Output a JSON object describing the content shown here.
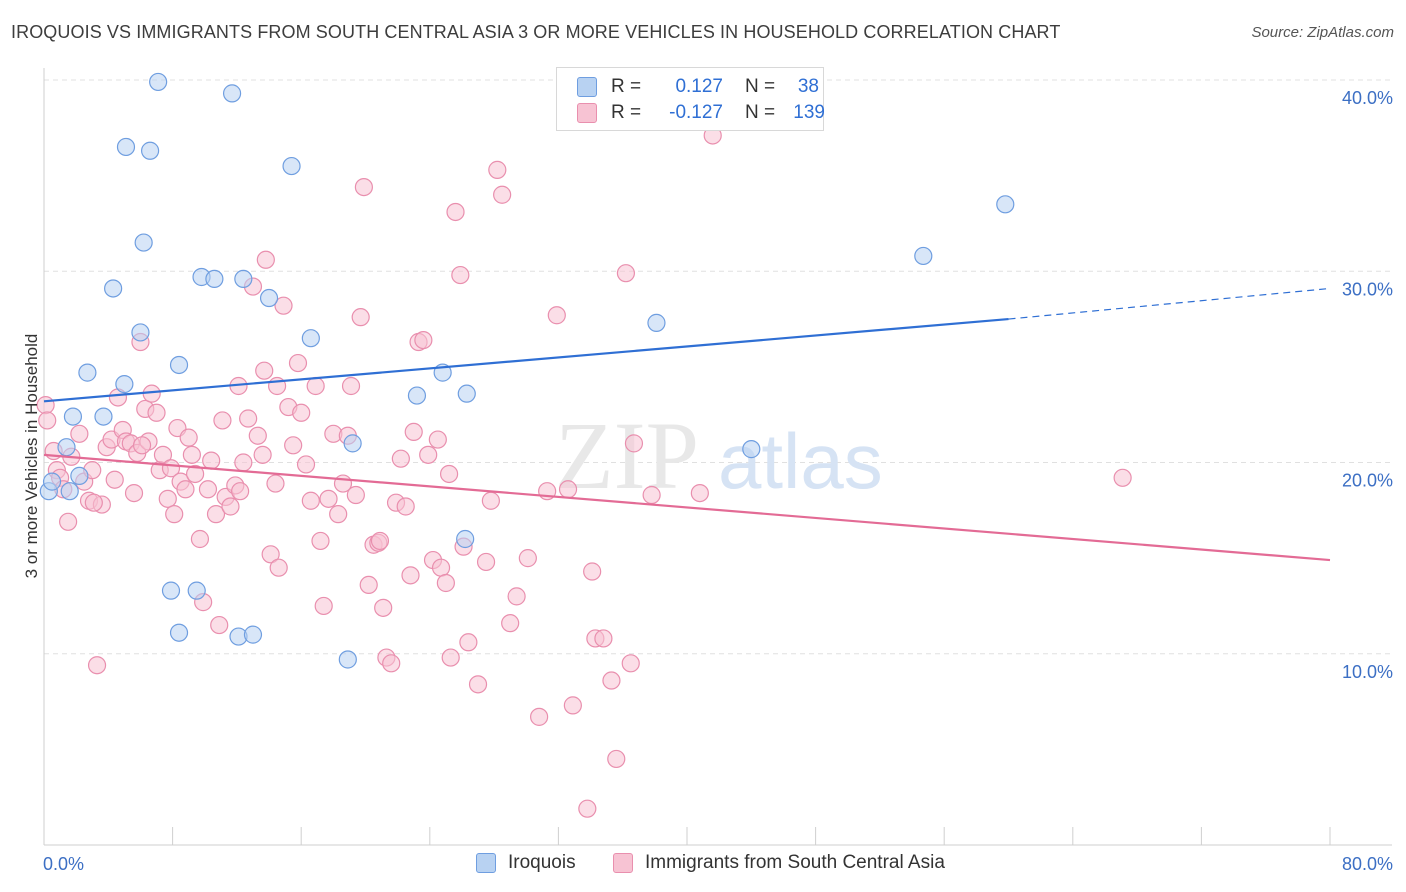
{
  "title": "IROQUOIS VS IMMIGRANTS FROM SOUTH CENTRAL ASIA 3 OR MORE VEHICLES IN HOUSEHOLD CORRELATION CHART",
  "source": "Source: ZipAtlas.com",
  "watermark": {
    "zip": "ZIP",
    "atlas": "atlas"
  },
  "legend": {
    "rows": [
      {
        "r_label": "R =",
        "r_value": "0.127",
        "n_label": "N =",
        "n_value": "38"
      },
      {
        "r_label": "R =",
        "r_value": "-0.127",
        "n_label": "N =",
        "n_value": "139"
      }
    ]
  },
  "colors": {
    "iroquois_fill": "#b8d2f2",
    "iroquois_stroke": "#6f9ee0",
    "iroquois_line": "#2f6fd4",
    "immigrants_fill": "#f7c3d3",
    "immigrants_stroke": "#e98fae",
    "immigrants_line": "#e36b95",
    "tick_text": "#3c6fc4",
    "grid": "#e0e0e0"
  },
  "chart_data": {
    "type": "scatter",
    "title": "IROQUOIS VS IMMIGRANTS FROM SOUTH CENTRAL ASIA 3 OR MORE VEHICLES IN HOUSEHOLD CORRELATION CHART",
    "xlabel": "",
    "ylabel": "3 or more Vehicles in Household",
    "xlim": [
      0,
      80
    ],
    "ylim": [
      0,
      40
    ],
    "x_tick_labels": [
      "0.0%",
      "80.0%"
    ],
    "y_ticks": [
      10,
      20,
      30,
      40
    ],
    "y_tick_labels": [
      "10.0%",
      "20.0%",
      "30.0%",
      "40.0%"
    ],
    "grid": true,
    "legend_position": "top-center",
    "series": [
      {
        "name": "Iroquois",
        "points": [
          [
            0.3,
            18.5
          ],
          [
            0.5,
            19.0
          ],
          [
            1.4,
            20.8
          ],
          [
            1.8,
            22.4
          ],
          [
            1.6,
            18.5
          ],
          [
            2.2,
            19.3
          ],
          [
            2.7,
            24.7
          ],
          [
            3.7,
            22.4
          ],
          [
            4.3,
            29.1
          ],
          [
            5.0,
            24.1
          ],
          [
            5.1,
            36.5
          ],
          [
            6.0,
            26.8
          ],
          [
            6.2,
            31.5
          ],
          [
            6.6,
            36.3
          ],
          [
            7.1,
            39.9
          ],
          [
            7.9,
            13.3
          ],
          [
            8.4,
            11.1
          ],
          [
            8.4,
            25.1
          ],
          [
            9.5,
            13.3
          ],
          [
            9.8,
            29.7
          ],
          [
            10.6,
            29.6
          ],
          [
            11.7,
            39.3
          ],
          [
            12.1,
            10.9
          ],
          [
            12.4,
            29.6
          ],
          [
            13.0,
            11.0
          ],
          [
            14.0,
            28.6
          ],
          [
            15.4,
            35.5
          ],
          [
            16.6,
            26.5
          ],
          [
            18.9,
            9.7
          ],
          [
            19.2,
            21.0
          ],
          [
            23.2,
            23.5
          ],
          [
            24.8,
            24.7
          ],
          [
            26.2,
            16.0
          ],
          [
            26.3,
            23.6
          ],
          [
            38.1,
            27.3
          ],
          [
            44.0,
            20.7
          ],
          [
            54.7,
            30.8
          ],
          [
            59.8,
            33.5
          ]
        ]
      },
      {
        "name": "Immigrants from South Central Asia",
        "points": [
          [
            0.1,
            23.0
          ],
          [
            0.2,
            22.2
          ],
          [
            0.6,
            20.6
          ],
          [
            0.8,
            19.6
          ],
          [
            1.0,
            19.2
          ],
          [
            1.2,
            18.6
          ],
          [
            1.5,
            16.9
          ],
          [
            1.7,
            20.3
          ],
          [
            2.2,
            21.5
          ],
          [
            2.5,
            19.0
          ],
          [
            2.8,
            18.0
          ],
          [
            3.0,
            19.6
          ],
          [
            3.3,
            9.4
          ],
          [
            3.6,
            17.8
          ],
          [
            3.9,
            20.8
          ],
          [
            4.2,
            21.2
          ],
          [
            4.4,
            19.1
          ],
          [
            4.6,
            23.4
          ],
          [
            4.9,
            21.7
          ],
          [
            5.1,
            21.1
          ],
          [
            5.4,
            21.0
          ],
          [
            5.6,
            18.4
          ],
          [
            5.8,
            20.5
          ],
          [
            6.0,
            26.3
          ],
          [
            6.3,
            22.8
          ],
          [
            6.5,
            21.1
          ],
          [
            6.7,
            23.6
          ],
          [
            7.0,
            22.6
          ],
          [
            7.2,
            19.6
          ],
          [
            7.4,
            20.4
          ],
          [
            7.7,
            18.1
          ],
          [
            7.9,
            19.7
          ],
          [
            8.1,
            17.3
          ],
          [
            8.3,
            21.8
          ],
          [
            8.5,
            19.0
          ],
          [
            8.8,
            18.6
          ],
          [
            9.2,
            20.4
          ],
          [
            9.4,
            19.4
          ],
          [
            9.7,
            16.0
          ],
          [
            9.9,
            12.7
          ],
          [
            10.2,
            18.6
          ],
          [
            10.4,
            20.1
          ],
          [
            10.7,
            17.3
          ],
          [
            10.9,
            11.5
          ],
          [
            11.1,
            22.2
          ],
          [
            11.3,
            18.2
          ],
          [
            11.6,
            17.7
          ],
          [
            11.9,
            18.8
          ],
          [
            12.1,
            24.0
          ],
          [
            12.4,
            20.0
          ],
          [
            12.7,
            22.3
          ],
          [
            13.0,
            29.2
          ],
          [
            13.3,
            21.4
          ],
          [
            13.6,
            20.4
          ],
          [
            13.8,
            30.6
          ],
          [
            14.1,
            15.2
          ],
          [
            14.4,
            18.9
          ],
          [
            14.6,
            14.5
          ],
          [
            14.9,
            28.2
          ],
          [
            15.2,
            22.9
          ],
          [
            15.5,
            20.9
          ],
          [
            15.8,
            25.2
          ],
          [
            16.0,
            22.6
          ],
          [
            16.3,
            19.9
          ],
          [
            16.6,
            18.0
          ],
          [
            16.9,
            24.0
          ],
          [
            17.2,
            15.9
          ],
          [
            17.4,
            12.5
          ],
          [
            17.7,
            18.1
          ],
          [
            18.0,
            21.5
          ],
          [
            18.3,
            17.3
          ],
          [
            18.6,
            18.9
          ],
          [
            18.9,
            21.4
          ],
          [
            19.1,
            24.0
          ],
          [
            19.4,
            18.3
          ],
          [
            19.7,
            27.6
          ],
          [
            19.9,
            34.4
          ],
          [
            20.2,
            13.6
          ],
          [
            20.5,
            15.7
          ],
          [
            20.8,
            15.8
          ],
          [
            21.1,
            12.4
          ],
          [
            21.3,
            9.8
          ],
          [
            21.6,
            9.5
          ],
          [
            21.9,
            17.9
          ],
          [
            22.2,
            20.2
          ],
          [
            22.5,
            17.7
          ],
          [
            22.8,
            14.1
          ],
          [
            23.0,
            21.6
          ],
          [
            23.3,
            26.3
          ],
          [
            23.6,
            26.4
          ],
          [
            23.9,
            20.4
          ],
          [
            24.2,
            14.9
          ],
          [
            24.5,
            21.2
          ],
          [
            24.7,
            14.5
          ],
          [
            25.0,
            13.7
          ],
          [
            25.3,
            9.8
          ],
          [
            25.6,
            33.1
          ],
          [
            25.9,
            29.8
          ],
          [
            26.1,
            15.6
          ],
          [
            26.4,
            10.6
          ],
          [
            27.0,
            8.4
          ],
          [
            27.5,
            14.8
          ],
          [
            28.2,
            35.3
          ],
          [
            28.5,
            34.0
          ],
          [
            29.0,
            11.6
          ],
          [
            29.4,
            13.0
          ],
          [
            30.1,
            15.0
          ],
          [
            30.8,
            6.7
          ],
          [
            31.3,
            18.5
          ],
          [
            31.9,
            27.7
          ],
          [
            32.6,
            18.6
          ],
          [
            32.9,
            7.3
          ],
          [
            33.8,
            1.9
          ],
          [
            34.1,
            14.3
          ],
          [
            34.3,
            10.8
          ],
          [
            34.8,
            10.8
          ],
          [
            35.3,
            8.6
          ],
          [
            35.6,
            4.5
          ],
          [
            36.2,
            29.9
          ],
          [
            36.5,
            9.5
          ],
          [
            36.7,
            21.0
          ],
          [
            37.8,
            18.3
          ],
          [
            40.8,
            18.4
          ],
          [
            41.6,
            37.1
          ],
          [
            67.1,
            19.2
          ],
          [
            13.7,
            24.8
          ],
          [
            9.0,
            21.3
          ],
          [
            6.1,
            20.9
          ],
          [
            3.1,
            17.9
          ],
          [
            27.8,
            18.0
          ],
          [
            14.5,
            24.0
          ],
          [
            12.2,
            18.5
          ],
          [
            25.2,
            19.4
          ],
          [
            20.9,
            15.9
          ]
        ]
      }
    ],
    "trendlines": [
      {
        "series": "Iroquois",
        "x": [
          0,
          60
        ],
        "y": [
          23.2,
          27.5
        ],
        "extension_x": [
          60,
          80
        ],
        "extension_y": [
          27.5,
          29.1
        ]
      },
      {
        "series": "Immigrants from South Central Asia",
        "x": [
          0,
          80
        ],
        "y": [
          20.4,
          14.9
        ]
      }
    ]
  },
  "bottom_legend": {
    "items": [
      {
        "label": "Iroquois"
      },
      {
        "label": "Immigrants from South Central Asia"
      }
    ]
  }
}
